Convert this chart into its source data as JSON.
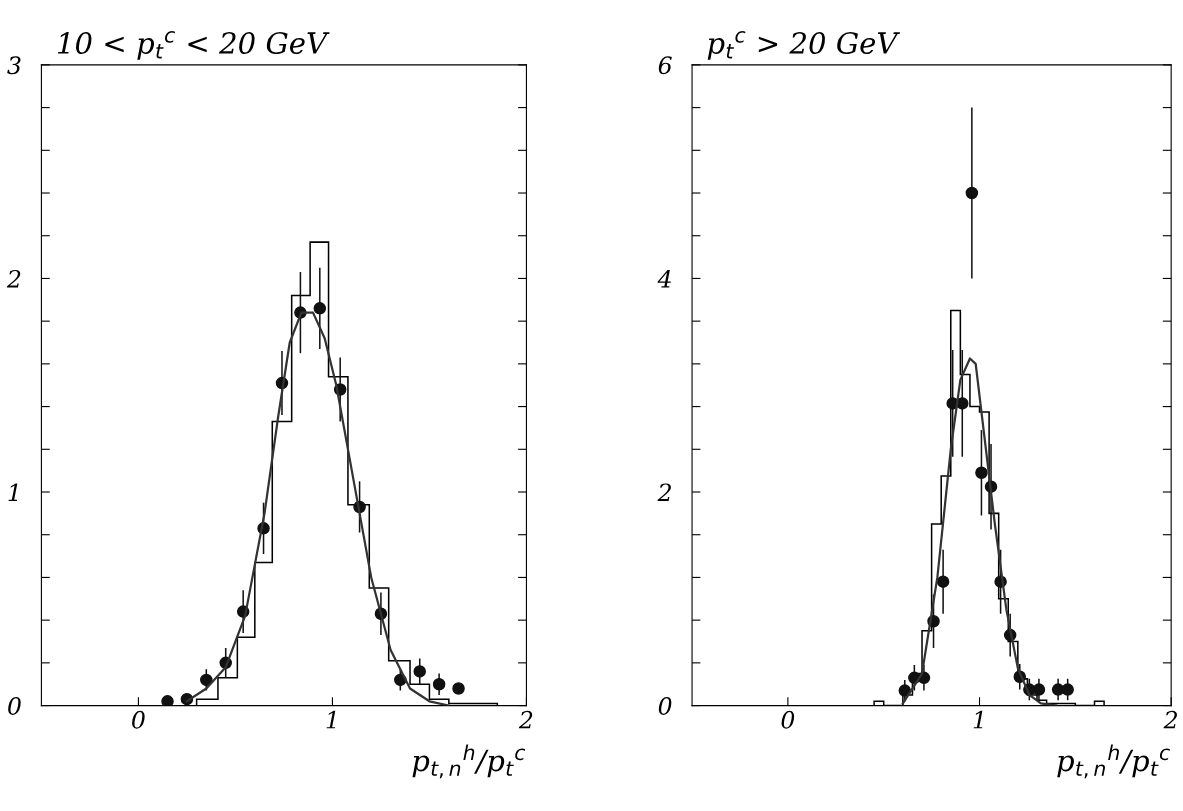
{
  "chart_data": [
    {
      "type": "histogram",
      "title": "10 < p$_{t}$$^{c}$ < 20 GeV",
      "xlabel": "p$_{t,n}$$^{h}$/p$_{t}$$^{c}$",
      "xlim": [
        -0.5,
        2
      ],
      "xticks": [
        0,
        1,
        2
      ],
      "ylim": [
        0,
        3
      ],
      "yticks": [
        0,
        {
          "value": 0.2,
          "label": null
        },
        {
          "value": 0.4,
          "label": null
        },
        {
          "value": 0.6,
          "label": null
        },
        {
          "value": 0.8,
          "label": null
        },
        1,
        {
          "value": 1.2,
          "label": null
        },
        {
          "value": 1.4,
          "label": null
        },
        {
          "value": 1.6,
          "label": null
        },
        {
          "value": 1.8,
          "label": null
        },
        2,
        {
          "value": 2.2,
          "label": null
        },
        {
          "value": 2.4,
          "label": null
        },
        {
          "value": 2.6,
          "label": null
        },
        {
          "value": 2.8,
          "label": null
        },
        3
      ],
      "grid": false,
      "series": [
        {
          "type": "histogram",
          "color": "#000000",
          "bins": [
            0.3,
            0.41,
            0.51,
            0.6,
            0.69,
            0.79,
            0.885,
            0.98,
            1.08,
            1.19,
            1.29,
            1.4,
            1.5,
            1.6,
            1.7,
            1.85
          ],
          "values": [
            0.03,
            0.13,
            0.32,
            0.67,
            1.33,
            1.92,
            2.17,
            1.54,
            0.94,
            0.55,
            0.21,
            0.1,
            0.03,
            0.01,
            0.01
          ]
        },
        {
          "type": "scatter",
          "color": "#111111",
          "marker": "circle",
          "x": [
            0.15,
            0.25,
            0.35,
            0.45,
            0.54,
            0.645,
            0.74,
            0.835,
            0.935,
            1.04,
            1.14,
            1.25,
            1.35,
            1.45,
            1.55,
            1.65
          ],
          "values": [
            0.02,
            0.03,
            0.12,
            0.2,
            0.44,
            0.83,
            1.51,
            1.84,
            1.86,
            1.48,
            0.93,
            0.43,
            0.12,
            0.16,
            0.1,
            0.08
          ],
          "errors": [
            null,
            null,
            0.05,
            0.07,
            0.1,
            0.12,
            0.15,
            0.19,
            0.19,
            0.15,
            0.12,
            0.1,
            0.05,
            0.06,
            0.05,
            null
          ]
        },
        {
          "type": "line",
          "color": "#333333",
          "x": [
            0.25,
            0.35,
            0.45,
            0.55,
            0.65,
            0.72,
            0.78,
            0.84,
            0.9,
            0.96,
            1.02,
            1.1,
            1.2,
            1.3,
            1.4,
            1.5,
            1.6
          ],
          "values": [
            0.02,
            0.08,
            0.18,
            0.42,
            0.9,
            1.35,
            1.7,
            1.84,
            1.84,
            1.72,
            1.5,
            1.1,
            0.6,
            0.26,
            0.08,
            0.02,
            0.0
          ]
        }
      ]
    },
    {
      "type": "histogram",
      "title": "p$_{t}$$^{c}$ > 20 GeV",
      "xlabel": "p$_{t,n}$$^{h}$/p$_{t}$$^{c}$",
      "xlim": [
        -0.5,
        2
      ],
      "xticks": [
        0,
        1,
        2
      ],
      "ylim": [
        0,
        6
      ],
      "yticks": [
        0,
        {
          "value": 0.4,
          "label": null
        },
        {
          "value": 0.8,
          "label": null
        },
        {
          "value": 1.2,
          "label": null
        },
        {
          "value": 1.6,
          "label": null
        },
        2,
        {
          "value": 2.4,
          "label": null
        },
        {
          "value": 2.8,
          "label": null
        },
        {
          "value": 3.2,
          "label": null
        },
        {
          "value": 3.6,
          "label": null
        },
        4,
        {
          "value": 4.4,
          "label": null
        },
        {
          "value": 4.8,
          "label": null
        },
        {
          "value": 5.2,
          "label": null
        },
        {
          "value": 5.6,
          "label": null
        },
        6
      ],
      "grid": false,
      "series": [
        {
          "type": "histogram",
          "color": "#000000",
          "bins": [
            0.45,
            0.5,
            0.55,
            0.6,
            0.65,
            0.7,
            0.75,
            0.8,
            0.85,
            0.9,
            0.95,
            1.0,
            1.05,
            1.1,
            1.15,
            1.2,
            1.25,
            1.3,
            1.35,
            1.4,
            1.45,
            1.5,
            1.55,
            1.6,
            1.65
          ],
          "values": [
            0.04,
            0,
            0,
            0.1,
            0.3,
            0.7,
            1.7,
            2.15,
            3.7,
            3.1,
            2.8,
            2.75,
            1.8,
            1.0,
            0.6,
            0.25,
            0.1,
            0.05,
            0.02,
            0.02,
            0.02,
            0,
            0,
            0.04
          ]
        },
        {
          "type": "scatter",
          "color": "#111111",
          "marker": "circle",
          "x": [
            0.61,
            0.66,
            0.71,
            0.76,
            0.81,
            0.86,
            0.91,
            0.96,
            1.01,
            1.06,
            1.11,
            1.16,
            1.21,
            1.26,
            1.31,
            1.41,
            1.46
          ],
          "values": [
            0.14,
            0.26,
            0.26,
            0.79,
            1.16,
            2.83,
            2.83,
            4.8,
            2.18,
            2.05,
            1.16,
            0.66,
            0.27,
            0.15,
            0.15,
            0.15,
            0.15
          ],
          "errors": [
            0.1,
            0.12,
            0.12,
            0.25,
            0.3,
            0.5,
            0.5,
            0.8,
            0.4,
            0.4,
            0.3,
            0.2,
            0.12,
            0.1,
            0.1,
            0.1,
            0.1
          ]
        },
        {
          "type": "line",
          "color": "#333333",
          "x": [
            0.6,
            0.7,
            0.78,
            0.85,
            0.9,
            0.95,
            0.98,
            1.02,
            1.08,
            1.14,
            1.2,
            1.26,
            1.32,
            1.4
          ],
          "values": [
            0.02,
            0.3,
            1.2,
            2.4,
            3.05,
            3.25,
            3.2,
            2.6,
            1.7,
            0.9,
            0.35,
            0.1,
            0.02,
            0
          ]
        }
      ]
    }
  ]
}
